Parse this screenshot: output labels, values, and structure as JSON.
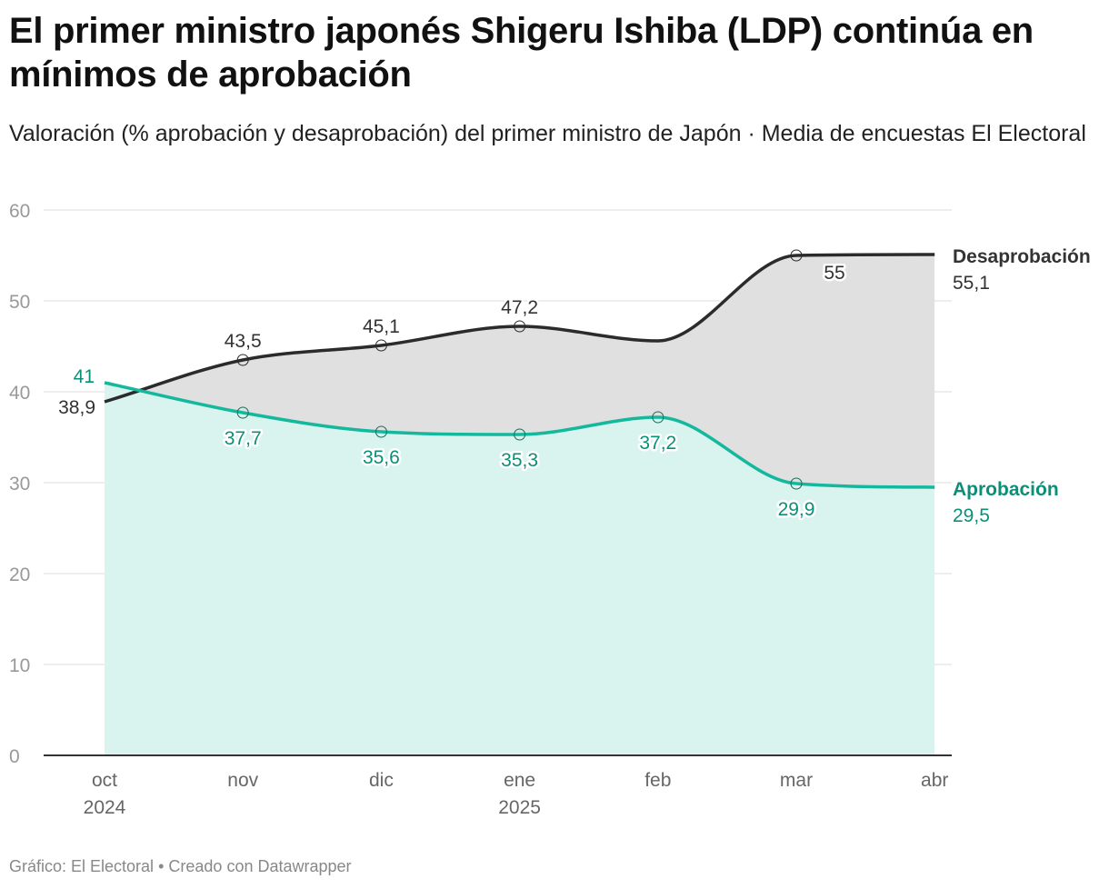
{
  "title": "El primer ministro japonés Shigeru Ishiba (LDP) continúa en mínimos de aprobación",
  "subtitle": "Valoración (% aprobación y desaprobación) del primer ministro de Japón · Media de encuestas El Electoral",
  "footer": {
    "credit": "Gráfico: El Electoral",
    "separator": "•",
    "tool": "Creado con Datawrapper"
  },
  "colors": {
    "disapproval": "#2b2b2b",
    "approval": "#13b89d",
    "approval_label": "#0b8f78",
    "disapproval_fill": "#e0e0e0",
    "approval_fill": "#d9f3ef",
    "grid": "#dddddd",
    "axis_text": "#999999"
  },
  "chart_data": {
    "type": "line",
    "x_ticks": [
      {
        "label": "oct",
        "sublabel": "2024"
      },
      {
        "label": "nov",
        "sublabel": ""
      },
      {
        "label": "dic",
        "sublabel": ""
      },
      {
        "label": "ene",
        "sublabel": "2025"
      },
      {
        "label": "feb",
        "sublabel": ""
      },
      {
        "label": "mar",
        "sublabel": ""
      },
      {
        "label": "abr",
        "sublabel": ""
      }
    ],
    "ylim": [
      0,
      60
    ],
    "y_ticks": [
      "0",
      "10",
      "20",
      "30",
      "40",
      "50",
      "60"
    ],
    "series": [
      {
        "name": "Desaprobación",
        "end_label": "55,1",
        "points": [
          {
            "x": 0,
            "value": 38.9,
            "label": "38,9",
            "marker": false
          },
          {
            "x": 1,
            "value": 43.5,
            "label": "43,5",
            "marker": true
          },
          {
            "x": 2,
            "value": 45.1,
            "label": "45,1",
            "marker": true
          },
          {
            "x": 3,
            "value": 47.2,
            "label": "47,2",
            "marker": true
          },
          {
            "x": 4,
            "value": 45.6,
            "label": "",
            "marker": false
          },
          {
            "x": 5,
            "value": 55.0,
            "label": "55",
            "marker": true
          },
          {
            "x": 6,
            "value": 55.1,
            "label": "",
            "marker": false
          }
        ]
      },
      {
        "name": "Aprobación",
        "end_label": "29,5",
        "points": [
          {
            "x": 0,
            "value": 41.0,
            "label": "41",
            "marker": false
          },
          {
            "x": 1,
            "value": 37.7,
            "label": "37,7",
            "marker": true
          },
          {
            "x": 2,
            "value": 35.6,
            "label": "35,6",
            "marker": true
          },
          {
            "x": 3,
            "value": 35.3,
            "label": "35,3",
            "marker": true
          },
          {
            "x": 4,
            "value": 37.2,
            "label": "37,2",
            "marker": true
          },
          {
            "x": 5,
            "value": 29.9,
            "label": "29,9",
            "marker": true
          },
          {
            "x": 6,
            "value": 29.5,
            "label": "",
            "marker": false
          }
        ]
      }
    ]
  }
}
